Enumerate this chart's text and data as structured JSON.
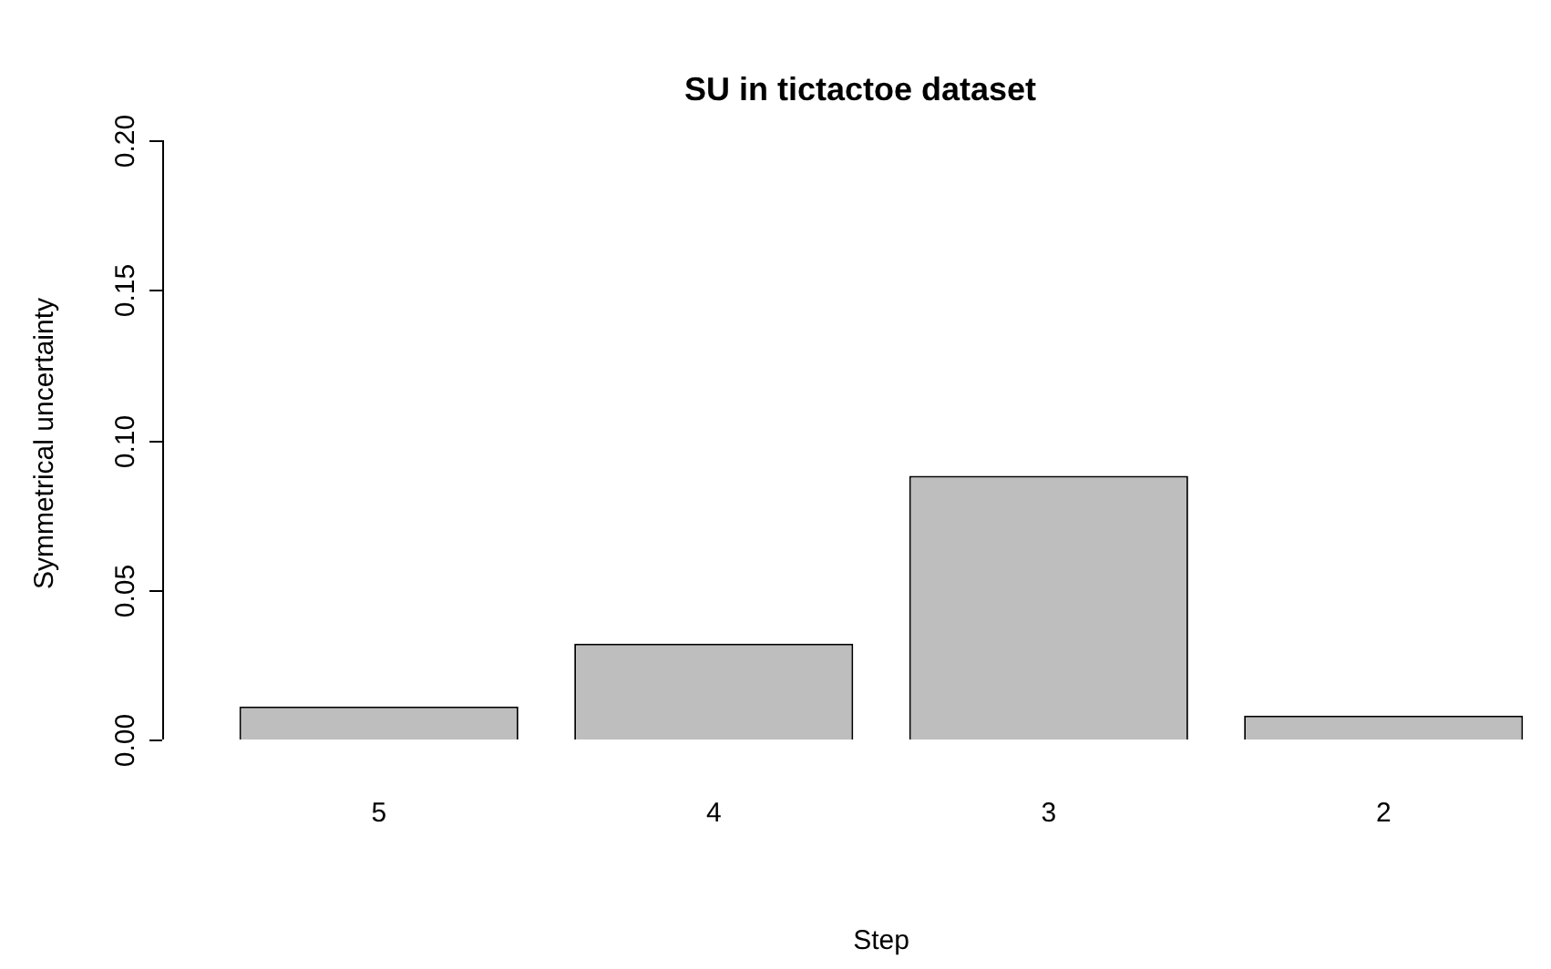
{
  "chart_data": {
    "type": "bar",
    "title": "SU in tictactoe dataset",
    "xlabel": "Step",
    "ylabel": "Symmetrical uncertainty",
    "categories": [
      "5",
      "4",
      "3",
      "2"
    ],
    "values": [
      0.011,
      0.032,
      0.088,
      0.008
    ],
    "color": "#bebebe",
    "ylim": [
      0,
      0.2
    ],
    "yticks": [
      {
        "value": 0,
        "label": "0.00"
      },
      {
        "value": 0.05,
        "label": "0.05"
      },
      {
        "value": 0.1,
        "label": "0.10"
      },
      {
        "value": 0.15,
        "label": "0.15"
      },
      {
        "value": 0.2,
        "label": "0.20"
      }
    ],
    "grid": false,
    "legend": false
  }
}
